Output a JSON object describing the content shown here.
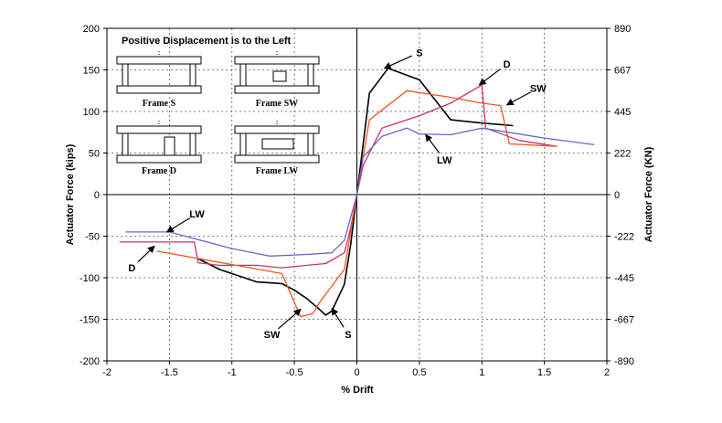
{
  "chart_data": {
    "type": "line",
    "note": "Positive Displacement is to the Left",
    "xlabel": "% Drift",
    "ylabel": "Actuator Force (kips)",
    "y2label": "Actuator Force (KN)",
    "xlim": [
      -2,
      2
    ],
    "ylim": [
      -200,
      200
    ],
    "x_ticks": [
      "-2",
      "-1.5",
      "-1",
      "-0.5",
      "0",
      "0.5",
      "1",
      "1.5",
      "2"
    ],
    "y_ticks": [
      "-200",
      "-150",
      "-100",
      "-50",
      "0",
      "50",
      "100",
      "150",
      "200"
    ],
    "y2_ticks": [
      "-890",
      "-667",
      "-445",
      "-222",
      "0",
      "222",
      "445",
      "667",
      "890"
    ],
    "grid": true,
    "colors": {
      "S": "#000000",
      "D": "#cc3366",
      "SW": "#ee5522",
      "LW": "#6666cc"
    },
    "series": [
      {
        "name": "S",
        "x": [
          -1.27,
          -1.1,
          -0.8,
          -0.6,
          -0.5,
          -0.4,
          -0.3,
          -0.25,
          -0.2,
          -0.1,
          -0.05,
          0,
          0.05,
          0.1,
          0.25,
          0.5,
          0.75,
          1.0,
          1.25
        ],
        "y": [
          -77,
          -90,
          -105,
          -107,
          -115,
          -125,
          -138,
          -145,
          -140,
          -108,
          -60,
          0,
          60,
          122,
          152,
          138,
          90,
          86,
          83
        ]
      },
      {
        "name": "D",
        "x": [
          -1.9,
          -1.3,
          -1.27,
          -1.1,
          -0.8,
          -0.6,
          -0.4,
          -0.25,
          -0.1,
          -0.05,
          0,
          0.05,
          0.2,
          0.5,
          0.75,
          1.0,
          1.03,
          1.3,
          1.6
        ],
        "y": [
          -57,
          -57,
          -82,
          -85,
          -85,
          -88,
          -85,
          -83,
          -70,
          -40,
          0,
          35,
          80,
          95,
          110,
          132,
          80,
          65,
          58
        ]
      },
      {
        "name": "SW",
        "x": [
          -1.6,
          -0.6,
          -0.45,
          -0.35,
          -0.3,
          -0.2,
          -0.1,
          0,
          0.1,
          0.4,
          0.75,
          1.0,
          1.15,
          1.22,
          1.6
        ],
        "y": [
          -68,
          -95,
          -147,
          -143,
          -130,
          -110,
          -90,
          0,
          90,
          125,
          117,
          110,
          107,
          61,
          58
        ]
      },
      {
        "name": "LW",
        "x": [
          -1.85,
          -1.5,
          -1.0,
          -0.7,
          -0.4,
          -0.2,
          -0.1,
          0,
          0.05,
          0.2,
          0.4,
          0.5,
          0.75,
          1.0,
          1.5,
          1.9
        ],
        "y": [
          -45,
          -45,
          -65,
          -74,
          -72,
          -70,
          -55,
          0,
          45,
          70,
          80,
          73,
          72,
          80,
          68,
          60
        ]
      }
    ],
    "annotations": [
      {
        "label": "S",
        "x": 0.5,
        "y": 171,
        "point_x": 0.22,
        "point_y": 152
      },
      {
        "label": "D",
        "x": 1.2,
        "y": 157,
        "point_x": 0.98,
        "point_y": 132
      },
      {
        "label": "SW",
        "x": 1.45,
        "y": 128,
        "point_x": 1.2,
        "point_y": 108
      },
      {
        "label": "LW",
        "x": 0.7,
        "y": 42,
        "point_x": 0.55,
        "point_y": 72
      },
      {
        "label": "LW",
        "x": -1.28,
        "y": -23,
        "point_x": -1.52,
        "point_y": -45
      },
      {
        "label": "D",
        "x": -1.8,
        "y": -88,
        "point_x": -1.62,
        "point_y": -62
      },
      {
        "label": "SW",
        "x": -0.68,
        "y": -168,
        "point_x": -0.45,
        "point_y": -138
      },
      {
        "label": "S",
        "x": -0.07,
        "y": -168,
        "point_x": -0.2,
        "point_y": -137
      }
    ],
    "frame_labels": [
      "Frame S",
      "Frame SW",
      "Frame D",
      "Frame LW"
    ]
  }
}
